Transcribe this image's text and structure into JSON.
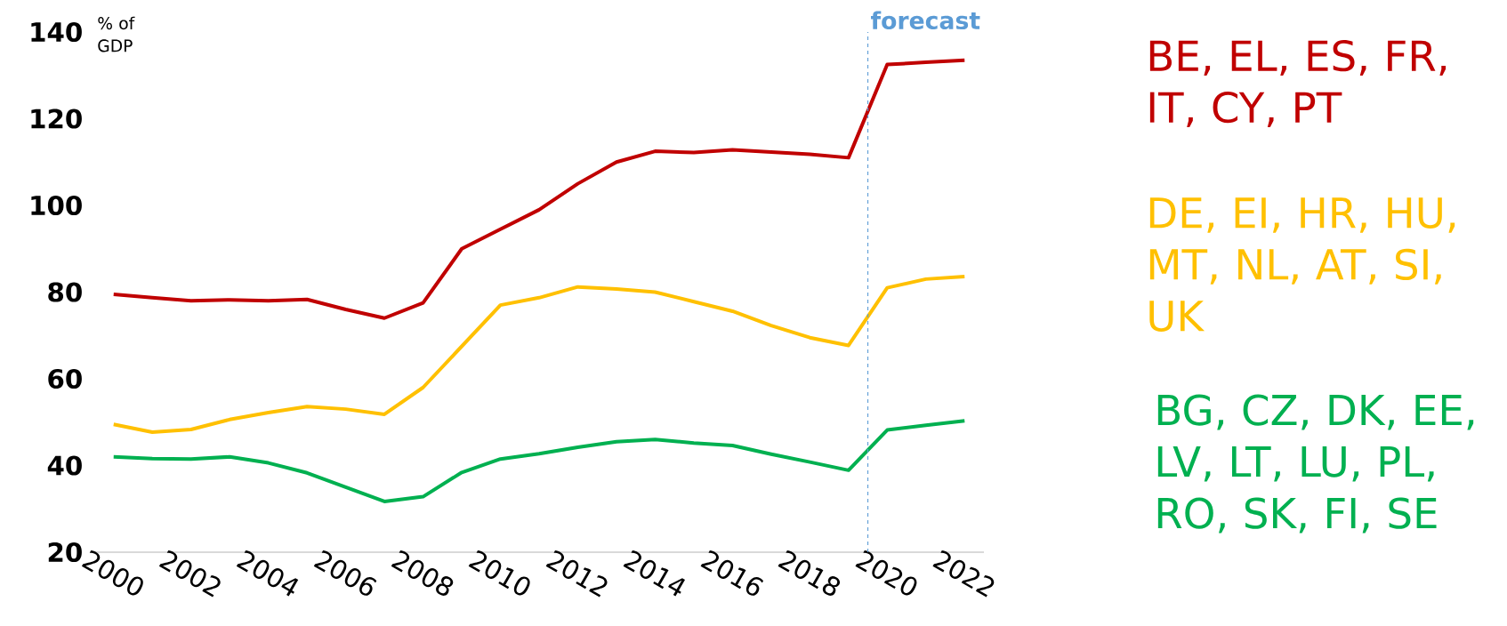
{
  "chart_data": {
    "type": "line",
    "ylabel": "% of GDP",
    "x": [
      2000,
      2001,
      2002,
      2003,
      2004,
      2005,
      2006,
      2007,
      2008,
      2009,
      2010,
      2011,
      2012,
      2013,
      2014,
      2015,
      2016,
      2017,
      2018,
      2019,
      2020,
      2021,
      2022
    ],
    "xlim": [
      1999.5,
      2022.5
    ],
    "ylim": [
      20,
      140
    ],
    "xticks": [
      2000,
      2002,
      2004,
      2006,
      2008,
      2010,
      2012,
      2014,
      2016,
      2018,
      2020,
      2022
    ],
    "yticks": [
      20,
      40,
      60,
      80,
      100,
      120,
      140
    ],
    "grid": false,
    "line_style": "solid",
    "ref_lines": [
      {
        "axis": "x",
        "value": 2019.5,
        "label": "forecast",
        "color": "#5b9bd5",
        "line_style": "dashed"
      }
    ],
    "series": [
      {
        "name": "BE, EL, ES, FR, IT, CY, PT",
        "color": "#c00000",
        "values": [
          79.5,
          78.7,
          78,
          78.2,
          78,
          78.3,
          76,
          74,
          77.5,
          90,
          94.5,
          99,
          105,
          110,
          112.5,
          112.2,
          112.8,
          112.3,
          111.8,
          111,
          132.5,
          133,
          133.5
        ]
      },
      {
        "name": "DE, EI, HR, HU, MT, NL, AT, SI, UK",
        "color": "#ffc000",
        "values": [
          49.5,
          47.7,
          48.3,
          50.6,
          52.2,
          53.6,
          53,
          51.8,
          58,
          67.5,
          77,
          78.7,
          81.2,
          80.7,
          80,
          77.8,
          75.6,
          72.3,
          69.5,
          67.7,
          81,
          83,
          83.6
        ]
      },
      {
        "name": "BG, CZ, DK, EE, LV, LT, LU, PL, RO, SK, FI, SE",
        "color": "#00b050",
        "values": [
          42,
          41.6,
          41.5,
          42,
          40.6,
          38.3,
          35,
          31.7,
          32.8,
          38.4,
          41.5,
          42.7,
          44.2,
          45.5,
          46,
          45.2,
          44.6,
          42.6,
          40.8,
          38.9,
          48.2,
          49.3,
          50.3
        ]
      }
    ]
  }
}
